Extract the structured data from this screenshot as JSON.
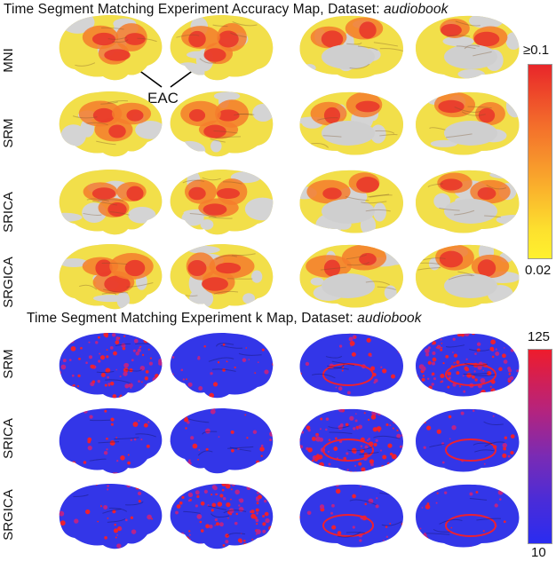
{
  "figure": {
    "top_title": {
      "prefix": "Time Segment Matching Experiment Accuracy Map, Dataset: ",
      "dataset": "audiobook"
    },
    "bottom_title": {
      "prefix": "Time Segment Matching Experiment k Map, Dataset: ",
      "dataset": "audiobook"
    },
    "annotation": "EAC",
    "accuracy_rows": [
      "MNI",
      "SRM",
      "SRICA",
      "SRGICA"
    ],
    "k_rows": [
      "SRM",
      "SRICA",
      "SRGICA"
    ],
    "accuracy_colorbar": {
      "max_label": "≥0.1",
      "min_label": "0.02",
      "colors": [
        "#e8262a",
        "#f58a2c",
        "#fff12e"
      ]
    },
    "k_colorbar": {
      "max_label": "125",
      "min_label": "10",
      "colors": [
        "#ee1c2c",
        "#8a2aa8",
        "#2a2cf0"
      ]
    }
  }
}
